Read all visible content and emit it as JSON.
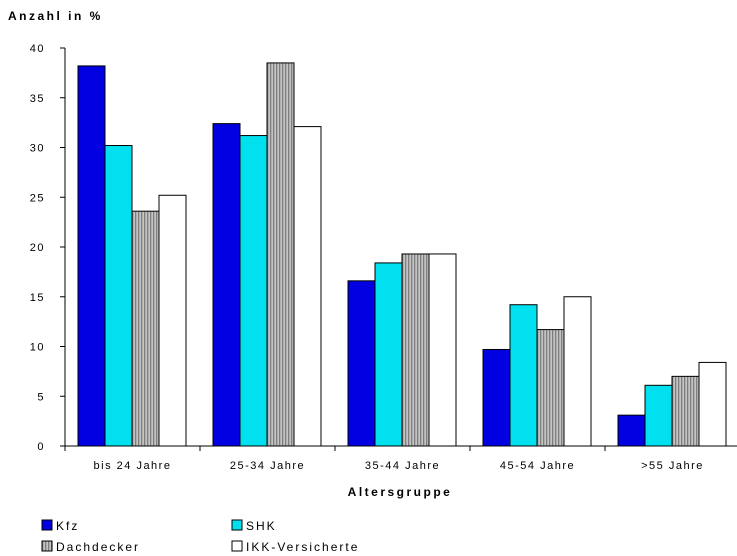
{
  "chart_data": {
    "type": "bar",
    "ylabel": "Anzahl in %",
    "xlabel": "Altersgruppe",
    "ylim": [
      0,
      40
    ],
    "yticks": [
      0,
      5,
      10,
      15,
      20,
      25,
      30,
      35,
      40
    ],
    "grid": false,
    "legend_position": "bottom-left",
    "categories": [
      "bis 24 Jahre",
      "25-34 Jahre",
      "35-44 Jahre",
      "45-54 Jahre",
      ">55 Jahre"
    ],
    "series": [
      {
        "name": "Kfz",
        "color": "#0000e0",
        "pattern": "solid",
        "values": [
          38.2,
          32.4,
          16.6,
          9.7,
          3.1
        ]
      },
      {
        "name": "SHK",
        "color": "#00e0ee",
        "pattern": "solid",
        "values": [
          30.2,
          31.2,
          18.4,
          14.2,
          6.1
        ]
      },
      {
        "name": "Dachdecker",
        "color": "#b0b0b0",
        "pattern": "vertical-stripes",
        "values": [
          23.6,
          38.5,
          19.3,
          11.7,
          7.0
        ]
      },
      {
        "name": "IKK-Versicherte",
        "color": "#ffffff",
        "pattern": "solid",
        "values": [
          25.2,
          32.1,
          19.3,
          15.0,
          8.4
        ]
      }
    ]
  }
}
